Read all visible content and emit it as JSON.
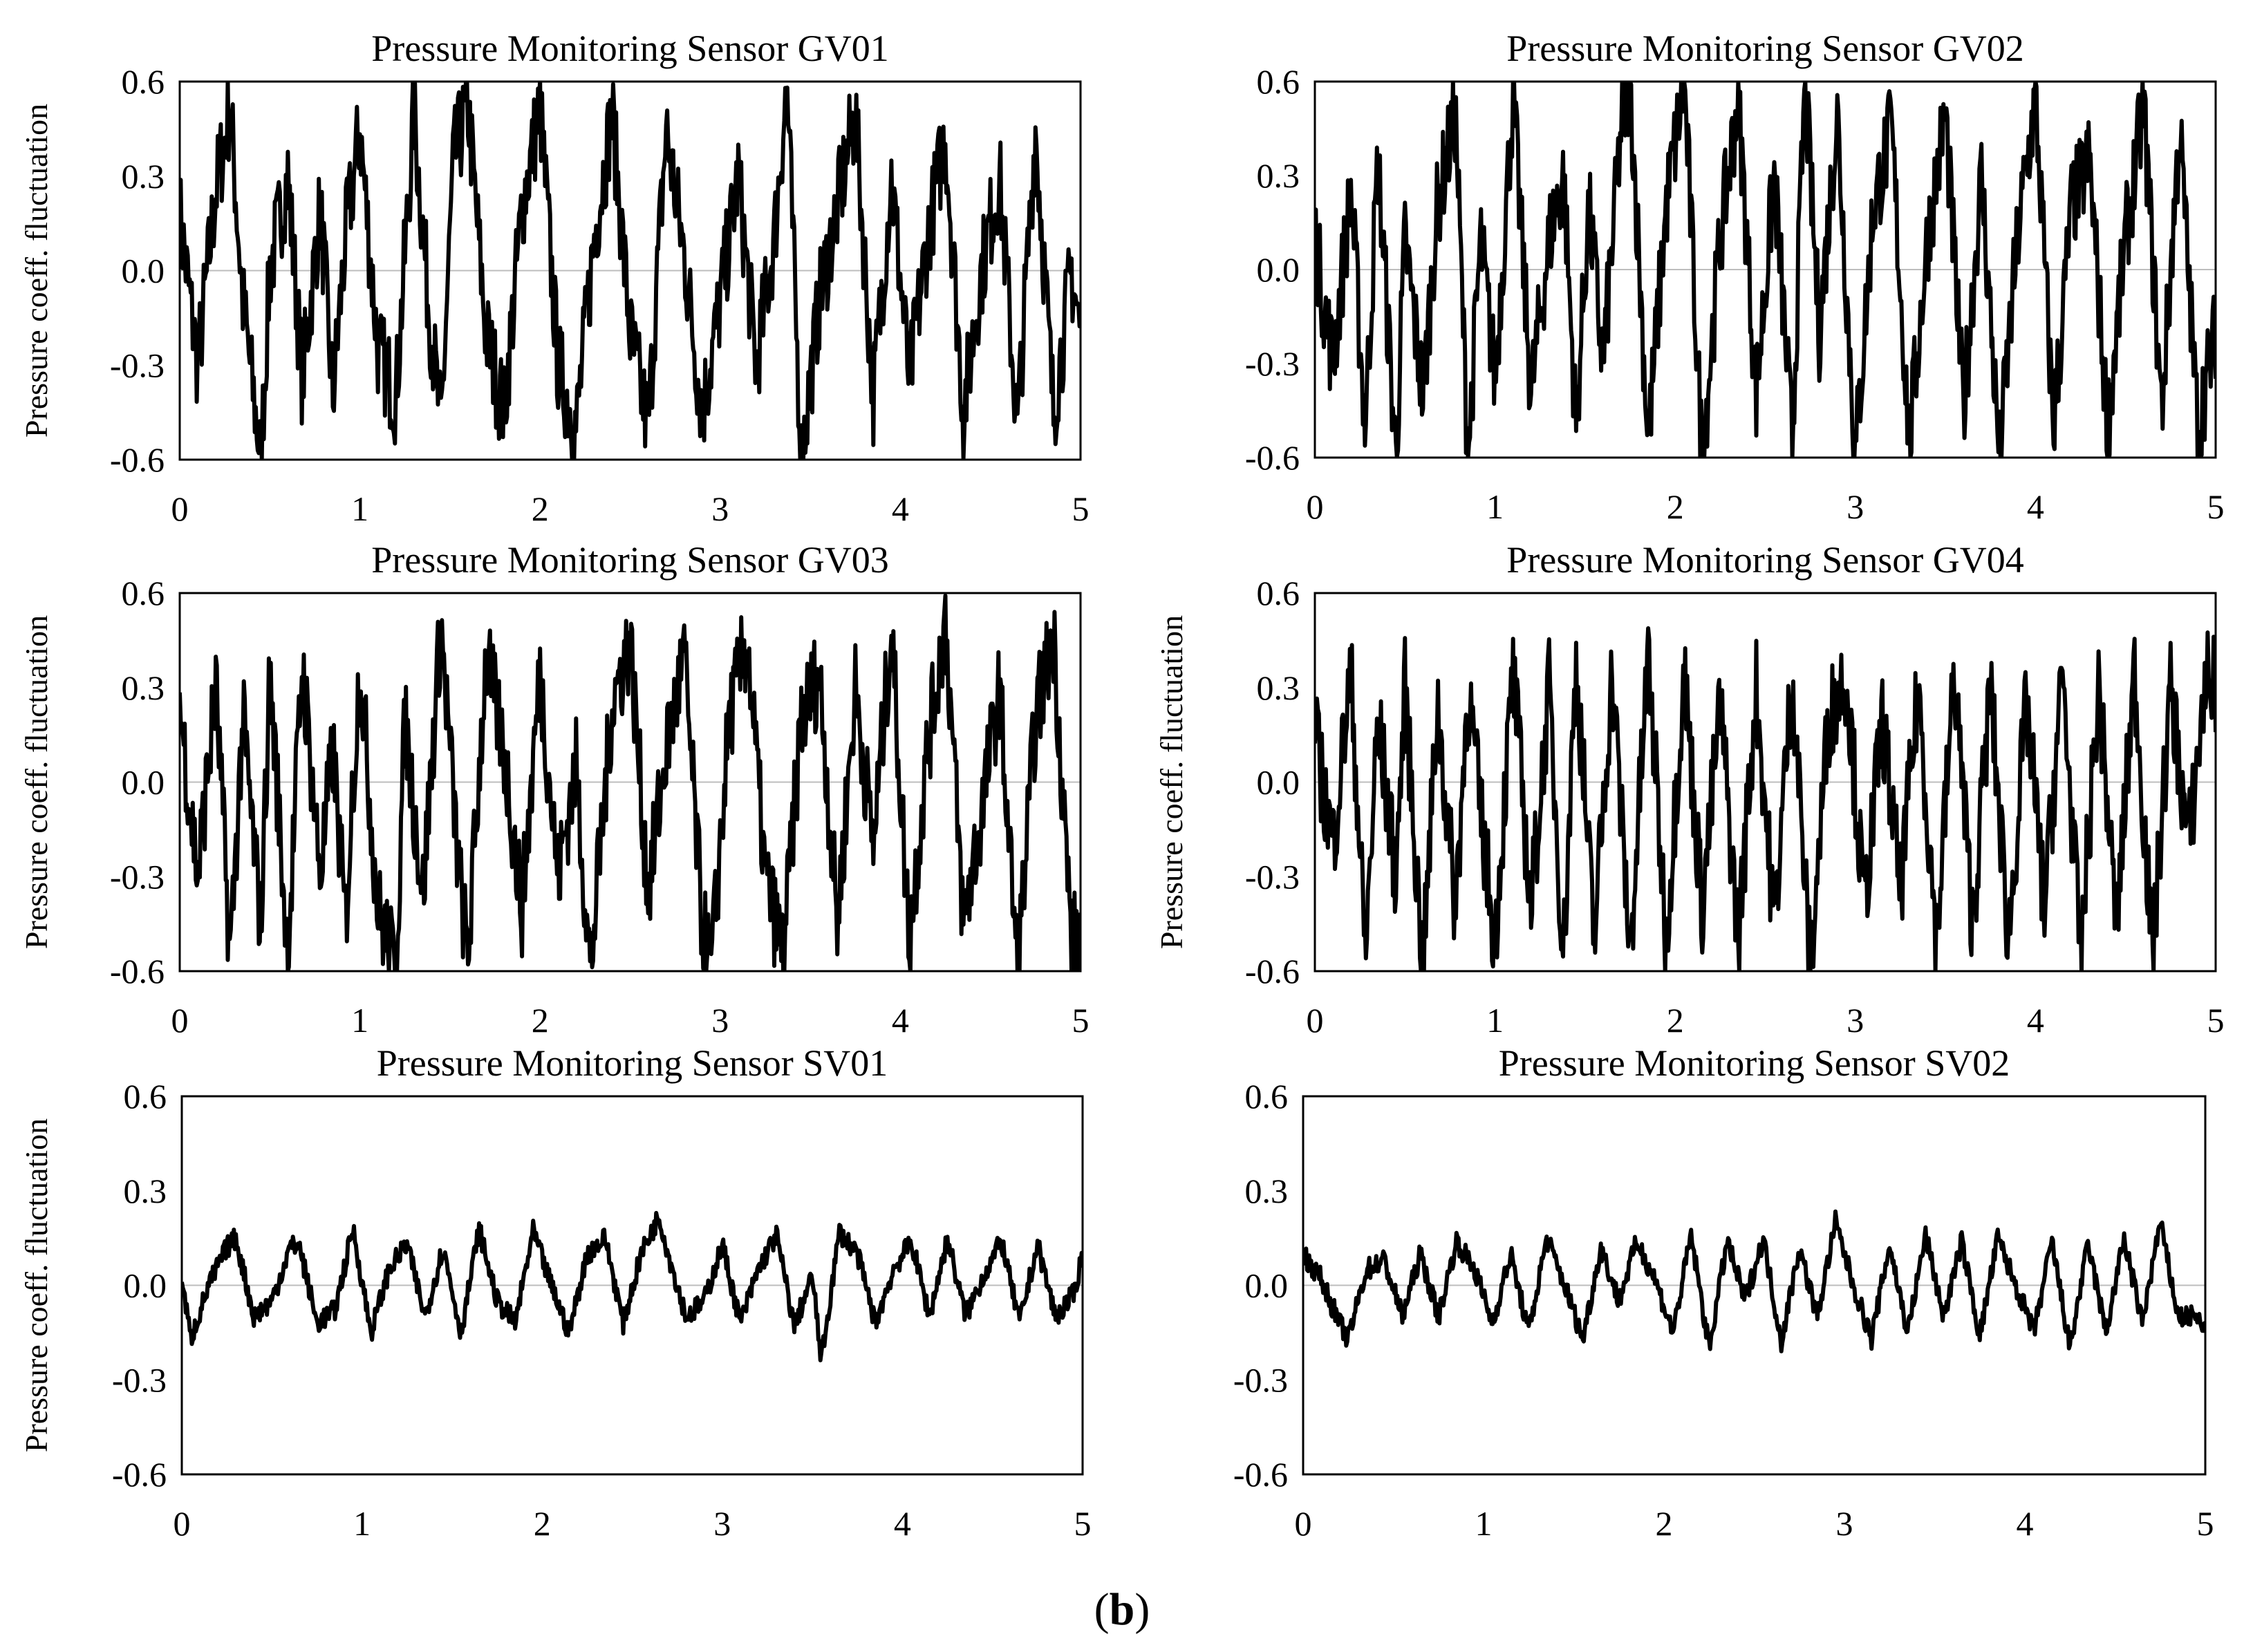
{
  "caption": {
    "open": "(",
    "letter": "b",
    "close": ")"
  },
  "line_color": "#000000",
  "chart_data": [
    {
      "type": "line",
      "title": "Pressure Monitoring Sensor GV01",
      "xlabel": "",
      "ylabel": "Pressure coeff. fluctuation",
      "xlim": [
        0,
        5
      ],
      "ylim": [
        -0.6,
        0.6
      ],
      "x_ticks": [
        "0",
        "1",
        "2",
        "3",
        "4",
        "5"
      ],
      "y_ticks": [
        "0.6",
        "0.3",
        "0.0",
        "-0.3",
        "-0.6"
      ],
      "grid": false,
      "series": [
        {
          "x": [
            0,
            0.1,
            0.2,
            0.28,
            0.35,
            0.45,
            0.5,
            0.6,
            0.68,
            0.78,
            0.85,
            0.92,
            1.0,
            1.1,
            1.2,
            1.3,
            1.38,
            1.45,
            1.52,
            1.6,
            1.7,
            1.8,
            1.9,
            2.0,
            2.1,
            2.2,
            2.3,
            2.4,
            2.5,
            2.6,
            2.7,
            2.8,
            2.9,
            3.0,
            3.1,
            3.2,
            3.3,
            3.37,
            3.45,
            3.55,
            3.65,
            3.75,
            3.85,
            3.95,
            4.05,
            4.15,
            4.25,
            4.35,
            4.45,
            4.55,
            4.65,
            4.75,
            4.85,
            4.95,
            5.0
          ],
          "values": [
            0.18,
            -0.3,
            0.25,
            0.52,
            -0.1,
            -0.6,
            0.0,
            0.3,
            -0.35,
            0.2,
            -0.4,
            0.1,
            0.45,
            -0.25,
            -0.4,
            0.5,
            -0.1,
            -0.5,
            0.35,
            0.52,
            -0.2,
            -0.45,
            0.2,
            0.52,
            -0.3,
            -0.5,
            0.1,
            0.5,
            -0.2,
            -0.5,
            0.45,
            0.05,
            -0.45,
            -0.1,
            0.3,
            -0.3,
            0.1,
            0.6,
            -0.6,
            -0.1,
            0.2,
            0.5,
            -0.4,
            0.3,
            -0.35,
            0.1,
            0.43,
            -0.45,
            0.0,
            0.3,
            -0.5,
            0.45,
            -0.45,
            0.0,
            -0.2
          ]
        }
      ]
    },
    {
      "type": "line",
      "title": "Pressure Monitoring Sensor GV02",
      "xlabel": "",
      "ylabel": "",
      "xlim": [
        0,
        5
      ],
      "ylim": [
        -0.6,
        0.6
      ],
      "x_ticks": [
        "0",
        "1",
        "2",
        "3",
        "4",
        "5"
      ],
      "y_ticks": [
        "0.6",
        "0.3",
        "0.0",
        "-0.3",
        "-0.6"
      ],
      "grid": false,
      "series": [
        {
          "x": [
            0,
            0.1,
            0.2,
            0.28,
            0.35,
            0.45,
            0.5,
            0.6,
            0.68,
            0.78,
            0.85,
            0.92,
            1.0,
            1.1,
            1.2,
            1.3,
            1.38,
            1.45,
            1.52,
            1.6,
            1.7,
            1.75,
            1.85,
            1.95,
            2.05,
            2.15,
            2.25,
            2.35,
            2.45,
            2.55,
            2.65,
            2.72,
            2.8,
            2.9,
            3.0,
            3.1,
            3.2,
            3.3,
            3.4,
            3.5,
            3.6,
            3.7,
            3.8,
            3.9,
            4.0,
            4.1,
            4.2,
            4.3,
            4.4,
            4.5,
            4.6,
            4.7,
            4.8,
            4.9,
            5.0
          ],
          "values": [
            0.1,
            -0.3,
            0.25,
            -0.5,
            0.35,
            -0.6,
            0.1,
            -0.4,
            0.2,
            0.5,
            -0.6,
            0.1,
            -0.35,
            0.55,
            -0.4,
            0.1,
            0.3,
            -0.5,
            0.2,
            -0.3,
            0.45,
            0.6,
            -0.55,
            0.2,
            0.6,
            -0.6,
            0.1,
            0.55,
            -0.4,
            0.3,
            -0.55,
            0.6,
            -0.2,
            0.5,
            -0.6,
            0.2,
            0.45,
            -0.55,
            0.1,
            0.5,
            -0.45,
            0.3,
            -0.6,
            0.1,
            0.55,
            -0.5,
            0.2,
            0.35,
            -0.5,
            0.1,
            0.52,
            -0.45,
            0.45,
            -0.5,
            -0.2
          ]
        }
      ]
    },
    {
      "type": "line",
      "title": "Pressure Monitoring Sensor GV03",
      "xlabel": "",
      "ylabel": "Pressure coeff. fluctuation",
      "xlim": [
        0,
        5
      ],
      "ylim": [
        -0.6,
        0.6
      ],
      "x_ticks": [
        "0",
        "1",
        "2",
        "3",
        "4",
        "5"
      ],
      "y_ticks": [
        "0.6",
        "0.3",
        "0.0",
        "-0.3",
        "-0.6"
      ],
      "grid": false,
      "series": [
        {
          "x": [
            0,
            0.1,
            0.2,
            0.28,
            0.35,
            0.45,
            0.5,
            0.6,
            0.68,
            0.78,
            0.85,
            0.92,
            1.0,
            1.1,
            1.2,
            1.25,
            1.35,
            1.45,
            1.55,
            1.6,
            1.7,
            1.8,
            1.9,
            2.0,
            2.1,
            2.2,
            2.28,
            2.4,
            2.5,
            2.6,
            2.7,
            2.8,
            2.9,
            2.95,
            3.05,
            3.15,
            3.25,
            3.35,
            3.45,
            3.55,
            3.65,
            3.75,
            3.85,
            3.95,
            4.05,
            4.15,
            4.25,
            4.35,
            4.45,
            4.55,
            4.65,
            4.75,
            4.85,
            4.95,
            5.0
          ],
          "values": [
            0.25,
            -0.3,
            0.3,
            -0.55,
            0.2,
            -0.45,
            0.35,
            -0.55,
            0.38,
            -0.3,
            0.1,
            -0.45,
            0.38,
            -0.4,
            -0.6,
            0.2,
            -0.35,
            0.5,
            -0.3,
            -0.55,
            0.4,
            0.1,
            -0.4,
            0.35,
            -0.3,
            0.05,
            -0.6,
            0.25,
            0.45,
            -0.35,
            0.1,
            0.4,
            -0.45,
            -0.6,
            0.2,
            0.45,
            -0.3,
            -0.55,
            0.2,
            0.35,
            -0.45,
            0.3,
            -0.2,
            0.48,
            -0.5,
            0.1,
            0.52,
            -0.45,
            -0.1,
            0.3,
            -0.6,
            0.2,
            0.47,
            -0.5,
            -0.5
          ]
        }
      ]
    },
    {
      "type": "line",
      "title": "Pressure Monitoring Sensor GV04",
      "xlabel": "",
      "ylabel": "Pressure coeff. fluctuation",
      "xlim": [
        0,
        5
      ],
      "ylim": [
        -0.6,
        0.6
      ],
      "x_ticks": [
        "0",
        "1",
        "2",
        "3",
        "4",
        "5"
      ],
      "y_ticks": [
        "0.6",
        "0.3",
        "0.0",
        "-0.3",
        "-0.6"
      ],
      "grid": false,
      "series": [
        {
          "x": [
            0,
            0.1,
            0.2,
            0.28,
            0.35,
            0.45,
            0.5,
            0.6,
            0.68,
            0.78,
            0.85,
            0.92,
            1.0,
            1.1,
            1.2,
            1.3,
            1.38,
            1.45,
            1.55,
            1.65,
            1.75,
            1.85,
            1.95,
            2.05,
            2.15,
            2.25,
            2.35,
            2.45,
            2.55,
            2.65,
            2.75,
            2.85,
            2.95,
            3.05,
            3.15,
            3.25,
            3.35,
            3.45,
            3.55,
            3.65,
            3.75,
            3.85,
            3.95,
            4.05,
            4.15,
            4.25,
            4.35,
            4.45,
            4.55,
            4.65,
            4.75,
            4.85,
            4.95,
            5.0
          ],
          "values": [
            0.15,
            -0.2,
            0.35,
            -0.55,
            0.2,
            -0.3,
            0.3,
            -0.6,
            0.25,
            -0.4,
            0.3,
            -0.1,
            -0.5,
            0.35,
            -0.4,
            0.3,
            -0.55,
            0.38,
            -0.5,
            0.35,
            -0.55,
            0.4,
            -0.5,
            0.35,
            -0.4,
            0.25,
            -0.5,
            0.3,
            -0.45,
            0.35,
            -0.6,
            0.2,
            0.35,
            -0.4,
            0.2,
            -0.35,
            0.3,
            -0.5,
            0.35,
            -0.45,
            0.3,
            -0.5,
            0.25,
            -0.4,
            0.35,
            -0.55,
            0.3,
            -0.45,
            0.35,
            -0.55,
            0.3,
            -0.2,
            0.35,
            0.3
          ]
        }
      ]
    },
    {
      "type": "line",
      "title": "Pressure Monitoring Sensor SV01",
      "xlabel": "",
      "ylabel": "Pressure coeff. fluctuation",
      "xlim": [
        0,
        5
      ],
      "ylim": [
        -0.6,
        0.6
      ],
      "x_ticks": [
        "0",
        "1",
        "2",
        "3",
        "4",
        "5"
      ],
      "y_ticks": [
        "0.6",
        "0.3",
        "0.0",
        "-0.3",
        "-0.6"
      ],
      "grid": false,
      "series": [
        {
          "x": [
            0,
            0.05,
            0.15,
            0.25,
            0.3,
            0.4,
            0.5,
            0.6,
            0.65,
            0.75,
            0.85,
            0.95,
            1.05,
            1.15,
            1.25,
            1.35,
            1.45,
            1.55,
            1.65,
            1.75,
            1.85,
            1.95,
            2.05,
            2.15,
            2.25,
            2.35,
            2.45,
            2.55,
            2.65,
            2.7,
            2.8,
            2.9,
            3.0,
            3.1,
            3.2,
            3.3,
            3.4,
            3.5,
            3.55,
            3.65,
            3.75,
            3.85,
            3.95,
            4.05,
            4.15,
            4.25,
            4.35,
            4.45,
            4.55,
            4.65,
            4.75,
            4.85,
            4.95,
            5.0
          ],
          "values": [
            0.02,
            -0.17,
            0.0,
            0.12,
            0.15,
            -0.1,
            -0.05,
            0.12,
            0.13,
            -0.12,
            -0.08,
            0.18,
            -0.15,
            0.05,
            0.13,
            -0.1,
            0.12,
            -0.15,
            0.18,
            -0.05,
            -0.12,
            0.17,
            0.0,
            -0.15,
            0.1,
            0.15,
            -0.12,
            0.1,
            0.22,
            0.1,
            -0.1,
            -0.05,
            0.13,
            -0.12,
            0.05,
            0.16,
            -0.13,
            0.03,
            -0.24,
            0.17,
            0.1,
            -0.12,
            0.05,
            0.14,
            -0.1,
            0.15,
            -0.1,
            0.03,
            0.14,
            -0.12,
            0.13,
            -0.1,
            -0.03,
            0.1
          ]
        }
      ]
    },
    {
      "type": "line",
      "title": "Pressure Monitoring Sensor SV02",
      "xlabel": "",
      "ylabel": "",
      "xlim": [
        0,
        5
      ],
      "ylim": [
        -0.6,
        0.6
      ],
      "x_ticks": [
        "0",
        "1",
        "2",
        "3",
        "4",
        "5"
      ],
      "y_ticks": [
        "0.6",
        "0.3",
        "0.0",
        "-0.3",
        "-0.6"
      ],
      "grid": false,
      "series": [
        {
          "x": [
            0,
            0.1,
            0.2,
            0.25,
            0.35,
            0.45,
            0.55,
            0.65,
            0.75,
            0.85,
            0.95,
            1.05,
            1.15,
            1.25,
            1.35,
            1.45,
            1.55,
            1.65,
            1.75,
            1.85,
            1.95,
            2.05,
            2.15,
            2.25,
            2.35,
            2.45,
            2.55,
            2.65,
            2.75,
            2.85,
            2.95,
            3.05,
            3.15,
            3.25,
            3.35,
            3.45,
            3.55,
            3.65,
            3.75,
            3.85,
            3.95,
            4.05,
            4.15,
            4.25,
            4.35,
            4.45,
            4.55,
            4.65,
            4.75,
            4.85,
            4.95,
            5.0
          ],
          "values": [
            0.1,
            0.02,
            -0.12,
            -0.17,
            0.05,
            0.08,
            -0.1,
            0.1,
            -0.1,
            0.14,
            0.05,
            -0.12,
            0.1,
            -0.15,
            0.15,
            0.0,
            -0.17,
            0.12,
            -0.05,
            0.14,
            0.02,
            -0.15,
            0.16,
            -0.2,
            0.14,
            -0.05,
            0.15,
            -0.18,
            0.12,
            -0.1,
            0.2,
            0.0,
            -0.17,
            0.13,
            -0.15,
            0.16,
            -0.1,
            0.14,
            -0.16,
            0.15,
            0.0,
            -0.15,
            0.14,
            -0.2,
            0.13,
            -0.15,
            0.15,
            -0.12,
            0.2,
            -0.1,
            -0.1,
            -0.15
          ]
        }
      ]
    }
  ]
}
